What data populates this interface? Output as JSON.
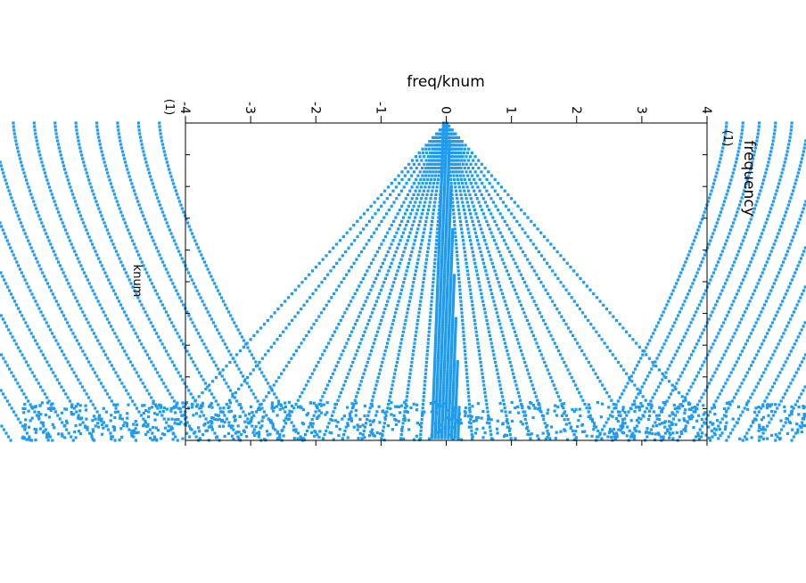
{
  "chart_data": {
    "type": "scatter",
    "title": "freq/knum",
    "xlabel": "knum",
    "ylabel": "frequency",
    "ylabel_unit": "(1)",
    "xlabel_unit": "(1)",
    "xlim": [
      0,
      1
    ],
    "ylim": [
      -4,
      4
    ],
    "y_ticks": [
      "-4",
      "-3",
      "-2",
      "-1",
      "0",
      "1",
      "2",
      "3",
      "4"
    ],
    "marker_color": "#1f9bef",
    "grid": false,
    "series": [
      {
        "description_free": true,
        "x": [
          0.02,
          0.05,
          0.1,
          0.15,
          0.2,
          0.25,
          0.3,
          0.35,
          0.4,
          0.45,
          0.5,
          0.55,
          0.6,
          0.65,
          0.7,
          0.75,
          0.8,
          0.85,
          0.9,
          0.95,
          1.0
        ],
        "branch_slopes": [
          -4.4,
          -3.8,
          -3.2,
          -2.6,
          -2.2,
          -1.9,
          -1.6,
          -1.3,
          -1.0,
          -0.7,
          -0.4,
          0.4,
          0.7,
          1.0,
          1.3,
          1.6,
          2.0,
          2.4,
          2.9,
          3.5,
          4.2
        ]
      }
    ]
  }
}
